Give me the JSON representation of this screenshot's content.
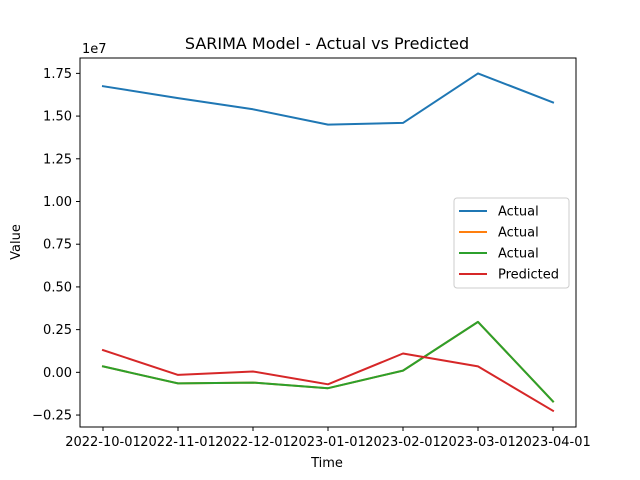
{
  "chart_data": {
    "type": "line",
    "title": "SARIMA Model - Actual vs Predicted",
    "xlabel": "Time",
    "ylabel": "Value",
    "y_offset_label": "1e7",
    "x": [
      "2022-10-01",
      "2022-11-01",
      "2022-12-01",
      "2023-01-01",
      "2023-02-01",
      "2023-03-01",
      "2023-04-01"
    ],
    "y_ticks": [
      "−0.25",
      "0.000",
      "0.250",
      "0.500",
      "0.750",
      "1.000",
      "1.250",
      "1.500",
      "1.750"
    ],
    "y_tick_values": [
      -0.25,
      0.0,
      0.25,
      0.5,
      0.75,
      1.0,
      1.25,
      1.5,
      1.75
    ],
    "y_tick_labels": [
      "−0.25",
      "0.00",
      "0.25",
      "0.50",
      "0.75",
      "1.00",
      "1.25",
      "1.50",
      "1.75"
    ],
    "ylim": [
      -0.32,
      1.84
    ],
    "legend_position": "center-right",
    "series": [
      {
        "name": "Actual",
        "color": "#1f77b4",
        "values": [
          1.675,
          1.605,
          1.54,
          1.45,
          1.46,
          1.75,
          1.58
        ]
      },
      {
        "name": "Actual",
        "color": "#ff7f0e",
        "values": [
          0.035,
          -0.065,
          -0.06,
          -0.093,
          0.01,
          0.295,
          -0.17
        ]
      },
      {
        "name": "Actual",
        "color": "#2ca02c",
        "values": [
          0.035,
          -0.065,
          -0.06,
          -0.093,
          0.01,
          0.295,
          -0.17
        ]
      },
      {
        "name": "Predicted",
        "color": "#d62728",
        "values": [
          0.13,
          -0.015,
          0.005,
          -0.07,
          0.11,
          0.035,
          -0.225
        ]
      }
    ]
  }
}
